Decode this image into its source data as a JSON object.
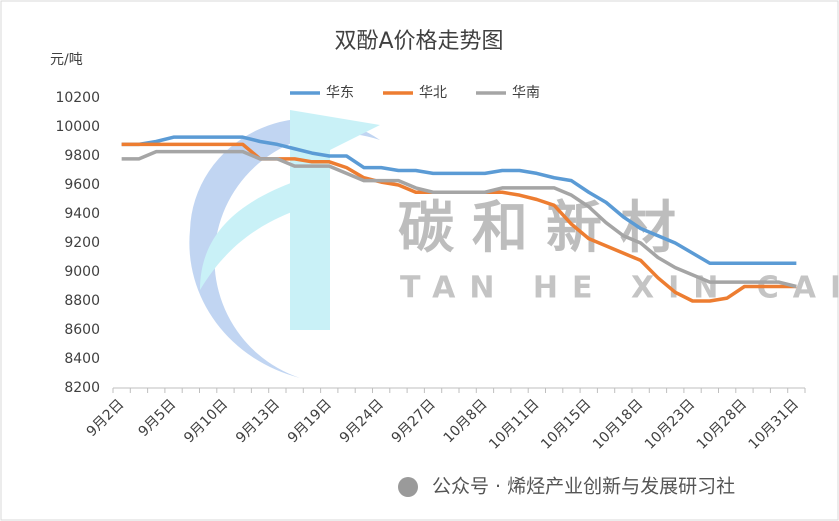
{
  "chart_data": {
    "type": "line",
    "title": "双酚A价格走势图",
    "y_label": "元/吨",
    "categories": [
      "9月2日",
      null,
      null,
      "9月5日",
      null,
      null,
      "9月10日",
      null,
      null,
      "9月13日",
      null,
      null,
      "9月19日",
      null,
      null,
      "9月24日",
      null,
      null,
      "9月27日",
      null,
      null,
      "10月8日",
      null,
      null,
      "10月11日",
      null,
      null,
      "10月15日",
      null,
      null,
      "10月18日",
      null,
      null,
      "10月23日",
      null,
      null,
      "10月28日",
      null,
      null,
      "10月31日"
    ],
    "series": [
      {
        "name": "华东",
        "color": "#5b9bd5",
        "values": [
          9880,
          9880,
          9900,
          9930,
          9930,
          9930,
          9930,
          9930,
          9900,
          9880,
          9850,
          9820,
          9800,
          9800,
          9720,
          9720,
          9700,
          9700,
          9680,
          9680,
          9680,
          9680,
          9700,
          9700,
          9680,
          9650,
          9630,
          9550,
          9480,
          9380,
          9300,
          9250,
          9200,
          9130,
          9060,
          9060,
          9060,
          9060,
          9060,
          9060
        ]
      },
      {
        "name": "华北",
        "color": "#ed7d31",
        "values": [
          9880,
          9880,
          9880,
          9880,
          9880,
          9880,
          9880,
          9880,
          9780,
          9780,
          9780,
          9760,
          9760,
          9720,
          9650,
          9620,
          9600,
          9550,
          9550,
          9550,
          9550,
          9550,
          9550,
          9530,
          9500,
          9460,
          9330,
          9230,
          9180,
          9130,
          9080,
          8960,
          8860,
          8800,
          8800,
          8820,
          8900,
          8900,
          8900,
          8900
        ]
      },
      {
        "name": "华南",
        "color": "#a5a5a5",
        "values": [
          9780,
          9780,
          9830,
          9830,
          9830,
          9830,
          9830,
          9830,
          9780,
          9780,
          9730,
          9730,
          9730,
          9680,
          9630,
          9630,
          9630,
          9580,
          9550,
          9550,
          9550,
          9550,
          9580,
          9580,
          9580,
          9580,
          9530,
          9450,
          9340,
          9250,
          9200,
          9100,
          9030,
          8980,
          8930,
          8930,
          8930,
          8930,
          8930,
          8900
        ]
      }
    ],
    "ylim": [
      8200,
      10200
    ],
    "yticks": [
      8200,
      8400,
      8600,
      8800,
      9000,
      9200,
      9400,
      9600,
      9800,
      10000,
      10200
    ],
    "grid": false,
    "legend": "top",
    "watermark": {
      "chinese": "碳和新材",
      "pinyin": "TAN HE XIN CAI"
    },
    "footer": "公众号 · 烯烃产业创新与发展研习社"
  }
}
